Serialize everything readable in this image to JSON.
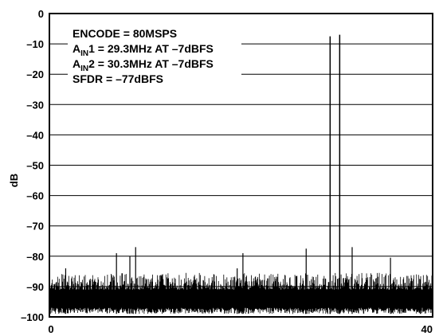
{
  "chart_data": {
    "type": "line",
    "title": "",
    "xlabel": "",
    "ylabel": "dB",
    "xlim": [
      0,
      40
    ],
    "ylim": [
      -100,
      0
    ],
    "x_ticks": [
      "0",
      "40"
    ],
    "y_ticks": [
      "0",
      "–10",
      "–20",
      "–30",
      "–40",
      "–50",
      "–60",
      "–70",
      "–80",
      "–90",
      "–100"
    ],
    "grid": "horizontal",
    "annotations": [
      {
        "main": "ENCODE = 80MSPS",
        "sub": "",
        "tail": ""
      },
      {
        "main": "A",
        "sub": "IN",
        "tail": "1 = 29.3MHz AT –7dBFS"
      },
      {
        "main": "A",
        "sub": "IN",
        "tail": "2 = 30.3MHz AT –7dBFS"
      },
      {
        "main": "SFDR = –77dBFS",
        "sub": "",
        "tail": ""
      }
    ],
    "series": [
      {
        "name": "",
        "noise_floor_db": -91,
        "spurs": [
          {
            "x": 1.7,
            "y": -84
          },
          {
            "x": 7.0,
            "y": -79
          },
          {
            "x": 8.4,
            "y": -80
          },
          {
            "x": 9.0,
            "y": -77
          },
          {
            "x": 19.6,
            "y": -84
          },
          {
            "x": 20.2,
            "y": -79
          },
          {
            "x": 26.8,
            "y": -77.5
          },
          {
            "x": 31.6,
            "y": -77
          },
          {
            "x": 35.6,
            "y": -80.5
          }
        ],
        "tones": [
          {
            "x": 29.3,
            "y": -7.5
          },
          {
            "x": 30.3,
            "y": -7.0
          }
        ]
      }
    ]
  }
}
